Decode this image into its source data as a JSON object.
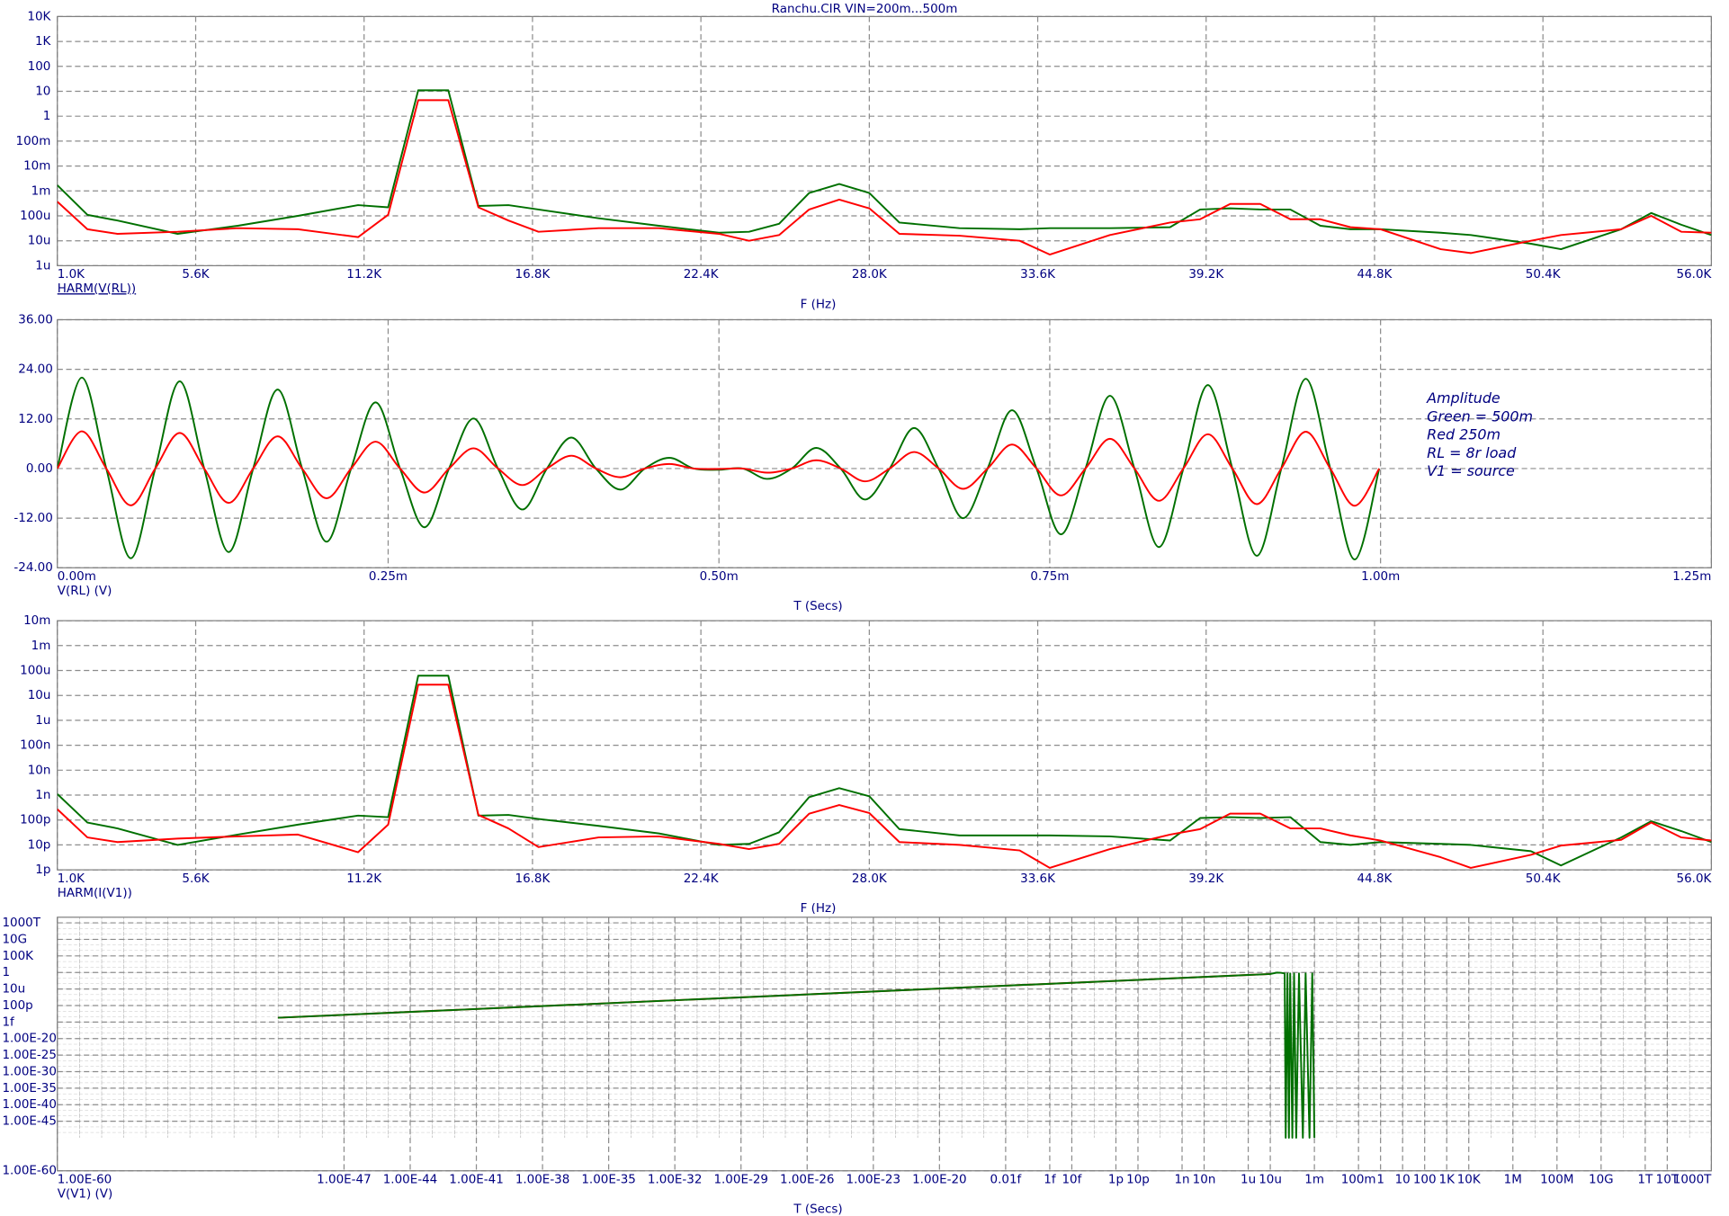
{
  "chart_data": [
    {
      "type": "line",
      "title": "Ranchu.CIR VIN=200m...500m",
      "trace": "HARM(V(RL))",
      "trace_color": "#0000ff",
      "x_label": "F (Hz)",
      "x_scale": "linear",
      "y_scale": "log",
      "grid": true,
      "smooth": false,
      "xlim": [
        1000,
        56000
      ],
      "xticks": [
        {
          "value": 1000,
          "label": "1.0K"
        },
        {
          "value": 5600,
          "label": "5.6K"
        },
        {
          "value": 11200,
          "label": "11.2K"
        },
        {
          "value": 16800,
          "label": "16.8K"
        },
        {
          "value": 22400,
          "label": "22.4K"
        },
        {
          "value": 28000,
          "label": "28.0K"
        },
        {
          "value": 33600,
          "label": "33.6K"
        },
        {
          "value": 39200,
          "label": "39.2K"
        },
        {
          "value": 44800,
          "label": "44.8K"
        },
        {
          "value": 50400,
          "label": "50.4K"
        },
        {
          "value": 56000,
          "label": "56.0K"
        }
      ],
      "ylim": [
        1e-06,
        10000
      ],
      "yticks": [
        {
          "value": 1e-06,
          "label": "1u"
        },
        {
          "value": 1e-05,
          "label": "10u"
        },
        {
          "value": 0.0001,
          "label": "100u"
        },
        {
          "value": 0.001,
          "label": "1m"
        },
        {
          "value": 0.01,
          "label": "10m"
        },
        {
          "value": 0.1,
          "label": "100m"
        },
        1,
        10,
        100,
        {
          "value": 1000,
          "label": "1K"
        },
        {
          "value": 10000,
          "label": "10K"
        }
      ],
      "x": [
        1000,
        2000,
        3000,
        5000,
        7000,
        9000,
        11000,
        12000,
        13000,
        14000,
        15000,
        16000,
        17000,
        19000,
        21000,
        23000,
        24000,
        25000,
        26000,
        27000,
        28000,
        29000,
        31000,
        33000,
        34000,
        36000,
        38000,
        39000,
        40000,
        41000,
        42000,
        43000,
        44000,
        45000,
        47000,
        48000,
        50000,
        51000,
        53000,
        54000,
        55000,
        56000
      ],
      "series": [
        {
          "color": "#007000",
          "values": [
            0.0017,
            0.00011,
            6.5e-05,
            1.9e-05,
            4e-05,
            0.0001,
            0.00027,
            0.00022,
            11,
            11,
            0.00025,
            0.00027,
            0.00018,
            8e-05,
            4e-05,
            2.1e-05,
            2.3e-05,
            4.8e-05,
            0.00083,
            0.0019,
            0.00083,
            5.4e-05,
            3.2e-05,
            2.9e-05,
            3.2e-05,
            3.2e-05,
            3.5e-05,
            0.00018,
            0.0002,
            0.00018,
            0.00018,
            4e-05,
            2.9e-05,
            2.9e-05,
            2.1e-05,
            1.7e-05,
            7.6e-06,
            4.6e-06,
            2.9e-05,
            0.00013,
            4.4e-05,
            1.7e-05
          ]
        },
        {
          "color": "#ff0000",
          "values": [
            0.00037,
            2.9e-05,
            1.9e-05,
            2.3e-05,
            3.2e-05,
            2.9e-05,
            1.4e-05,
            0.00011,
            4.4,
            4.4,
            0.00022,
            6.5e-05,
            2.3e-05,
            3.2e-05,
            3.2e-05,
            1.9e-05,
            1e-05,
            1.7e-05,
            0.00018,
            0.00045,
            0.0002,
            1.9e-05,
            1.6e-05,
            1e-05,
            2.8e-06,
            1.7e-05,
            5.4e-05,
            7.3e-05,
            0.0003,
            0.0003,
            7.3e-05,
            7.3e-05,
            3.5e-05,
            2.9e-05,
            4.6e-06,
            3.2e-06,
            1e-05,
            1.7e-05,
            2.9e-05,
            0.0001,
            2.3e-05,
            2.1e-05
          ]
        }
      ]
    },
    {
      "type": "line",
      "trace": "V(RL) (V)",
      "trace_color": "#ff0000",
      "x_label": "T (Secs)",
      "x_scale": "linear",
      "y_scale": "linear",
      "grid": true,
      "smooth": true,
      "xlim": [
        0,
        0.00125
      ],
      "xticks": [
        {
          "value": 0,
          "label": "0.00m"
        },
        {
          "value": 0.00025,
          "label": "0.25m"
        },
        {
          "value": 0.0005,
          "label": "0.50m"
        },
        {
          "value": 0.00075,
          "label": "0.75m"
        },
        {
          "value": 0.001,
          "label": "1.00m"
        },
        {
          "value": 0.00125,
          "label": "1.25m"
        }
      ],
      "ylim": [
        -24,
        36
      ],
      "yticks": [
        {
          "value": -24,
          "label": "-24.00"
        },
        {
          "value": -12,
          "label": "-12.00"
        },
        {
          "value": 0,
          "label": "0.00"
        },
        {
          "value": 12,
          "label": "12.00"
        },
        {
          "value": 24,
          "label": "24.00"
        },
        {
          "value": 36,
          "label": "36.00"
        }
      ],
      "annotations": [
        "Amplitude",
        "Green = 500m",
        "Red 250m",
        "RL = 8r load",
        "V1 = source"
      ],
      "annotation_color": "#ff0000",
      "x": [
        0,
        1.85e-05,
        3.7e-05,
        5.55e-05,
        7.4e-05,
        9.25e-05,
        0.000111,
        0.0001295,
        0.000148,
        0.0001665,
        0.000185,
        0.0002035,
        0.000222,
        0.0002405,
        0.000259,
        0.0002775,
        0.000296,
        0.0003145,
        0.000333,
        0.0003515,
        0.00037,
        0.0003885,
        0.000407,
        0.0004255,
        0.000444,
        0.0004625,
        0.000481,
        0.0004995,
        0.000518,
        0.0005365,
        0.000555,
        0.0005735,
        0.000592,
        0.0006105,
        0.000629,
        0.0006475,
        0.000666,
        0.0006845,
        0.000703,
        0.0007215,
        0.00074,
        0.0007585,
        0.000777,
        0.0007955,
        0.000814,
        0.0008325,
        0.000851,
        0.0008695,
        0.000888,
        0.0009065,
        0.000925,
        0.0009435,
        0.000962,
        0.0009805,
        0.000999
      ],
      "series": [
        {
          "color": "#007000",
          "values": [
            0,
            22.0,
            0,
            -21.7,
            0,
            21.1,
            0,
            -20.2,
            0,
            19.1,
            0,
            -17.7,
            0,
            16.0,
            0,
            -14.2,
            0,
            12.1,
            0,
            -9.9,
            0,
            7.5,
            0,
            -5.1,
            0,
            2.6,
            0,
            -0.3,
            0,
            -2.5,
            0,
            5.0,
            0,
            -7.5,
            0,
            9.8,
            0,
            -12.0,
            0,
            14.1,
            0,
            -15.9,
            0,
            17.6,
            0,
            -19.0,
            0,
            20.2,
            0,
            -21.1,
            0,
            21.7,
            0,
            -22.0,
            0
          ]
        },
        {
          "color": "#ff0000",
          "values": [
            0,
            9.0,
            0,
            -8.9,
            0,
            8.6,
            0,
            -8.3,
            0,
            7.8,
            0,
            -7.2,
            0,
            6.5,
            0,
            -5.8,
            0,
            4.9,
            0,
            -4.0,
            0,
            3.1,
            0,
            -2.1,
            0,
            1.1,
            0,
            -0.1,
            0,
            -1.0,
            0,
            2.0,
            0,
            -3.1,
            0,
            4.0,
            0,
            -4.9,
            0,
            5.8,
            0,
            -6.5,
            0,
            7.2,
            0,
            -7.8,
            0,
            8.3,
            0,
            -8.6,
            0,
            8.9,
            0,
            -9.0,
            0
          ]
        }
      ]
    },
    {
      "type": "line",
      "trace": "HARM(I(V1))",
      "trace_color": "#007000",
      "x_label": "F (Hz)",
      "x_scale": "linear",
      "y_scale": "log",
      "grid": true,
      "smooth": false,
      "xlim": [
        1000,
        56000
      ],
      "xticks": [
        {
          "value": 1000,
          "label": "1.0K"
        },
        {
          "value": 5600,
          "label": "5.6K"
        },
        {
          "value": 11200,
          "label": "11.2K"
        },
        {
          "value": 16800,
          "label": "16.8K"
        },
        {
          "value": 22400,
          "label": "22.4K"
        },
        {
          "value": 28000,
          "label": "28.0K"
        },
        {
          "value": 33600,
          "label": "33.6K"
        },
        {
          "value": 39200,
          "label": "39.2K"
        },
        {
          "value": 44800,
          "label": "44.8K"
        },
        {
          "value": 50400,
          "label": "50.4K"
        },
        {
          "value": 56000,
          "label": "56.0K"
        }
      ],
      "ylim": [
        1e-12,
        0.01
      ],
      "yticks": [
        {
          "value": 1e-12,
          "label": "1p"
        },
        {
          "value": 1e-11,
          "label": "10p"
        },
        {
          "value": 1e-10,
          "label": "100p"
        },
        {
          "value": 1e-09,
          "label": "1n"
        },
        {
          "value": 1e-08,
          "label": "10n"
        },
        {
          "value": 1e-07,
          "label": "100n"
        },
        {
          "value": 1e-06,
          "label": "1u"
        },
        {
          "value": 1e-05,
          "label": "10u"
        },
        {
          "value": 0.0001,
          "label": "100u"
        },
        {
          "value": 0.001,
          "label": "1m"
        },
        {
          "value": 0.01,
          "label": "10m"
        }
      ],
      "x": [
        1000,
        2000,
        3000,
        5000,
        7000,
        9000,
        11000,
        12000,
        13000,
        14000,
        15000,
        16000,
        17000,
        19000,
        21000,
        23000,
        24000,
        25000,
        26000,
        27000,
        28000,
        29000,
        31000,
        33000,
        34000,
        36000,
        38000,
        39000,
        40000,
        41000,
        42000,
        43000,
        44000,
        45000,
        47000,
        48000,
        50000,
        51000,
        53000,
        54000,
        55000,
        56000
      ],
      "series": [
        {
          "color": "#007000",
          "values": [
            1.1e-09,
            7.9e-11,
            4.6e-11,
            1e-11,
            2.6e-11,
            6.5e-11,
            1.5e-10,
            1.3e-10,
            6.2e-05,
            6.2e-05,
            1.5e-10,
            1.6e-10,
            1.1e-10,
            5.8e-11,
            2.9e-11,
            1e-11,
            1.1e-11,
            3.2e-11,
            8.3e-10,
            1.9e-09,
            9e-10,
            4.3e-11,
            2.4e-11,
            2.4e-11,
            2.4e-11,
            2.2e-11,
            1.5e-11,
            1.2e-10,
            1.3e-10,
            1.2e-10,
            1.3e-10,
            1.3e-11,
            1e-11,
            1.3e-11,
            1.1e-11,
            1e-11,
            5.6e-12,
            1.5e-12,
            2e-11,
            8.9e-11,
            3.6e-11,
            1.3e-11
          ]
        },
        {
          "color": "#ff0000",
          "values": [
            2.7e-10,
            2e-11,
            1.3e-11,
            1.8e-11,
            2.2e-11,
            2.6e-11,
            5.1e-12,
            6.5e-11,
            2.7e-05,
            2.7e-05,
            1.6e-10,
            4.6e-11,
            8.2e-12,
            2e-11,
            2.2e-11,
            1.1e-11,
            6.8e-12,
            1.1e-11,
            1.8e-10,
            4e-10,
            1.9e-10,
            1.3e-11,
            1e-11,
            6e-12,
            1.2e-12,
            6.8e-12,
            2.6e-11,
            4.3e-11,
            1.8e-10,
            1.8e-10,
            4.6e-11,
            4.6e-11,
            2.4e-11,
            1.5e-11,
            3.2e-12,
            1.2e-12,
            4e-12,
            9.4e-12,
            1.6e-11,
            7.9e-11,
            2e-11,
            1.5e-11
          ]
        }
      ]
    },
    {
      "type": "line",
      "trace": "V(V1) (V)",
      "trace_color": "#ff00ff",
      "x_label": "T (Secs)",
      "x_scale": "log",
      "y_scale": "log",
      "grid": true,
      "smooth": false,
      "xlim": [
        1e-60,
        1000000000000000.0
      ],
      "xticks": [
        {
          "value": 1e-60,
          "label": "1.00E-60"
        },
        {
          "value": 1e-47,
          "label": "1.00E-47"
        },
        {
          "value": 1e-44,
          "label": "1.00E-44"
        },
        {
          "value": 1e-41,
          "label": "1.00E-41"
        },
        {
          "value": 1e-38,
          "label": "1.00E-38"
        },
        {
          "value": 1e-35,
          "label": "1.00E-35"
        },
        {
          "value": 1e-32,
          "label": "1.00E-32"
        },
        {
          "value": 1e-29,
          "label": "1.00E-29"
        },
        {
          "value": 1e-26,
          "label": "1.00E-26"
        },
        {
          "value": 1e-23,
          "label": "1.00E-23"
        },
        {
          "value": 1e-20,
          "label": "1.00E-20"
        },
        {
          "value": 1e-17,
          "label": "0.01f"
        },
        {
          "value": 1e-15,
          "label": "1f"
        },
        {
          "value": 1e-14,
          "label": "10f"
        },
        {
          "value": 1e-12,
          "label": "1p"
        },
        {
          "value": 1e-11,
          "label": "10p"
        },
        {
          "value": 1e-09,
          "label": "1n"
        },
        {
          "value": 1e-08,
          "label": "10n"
        },
        {
          "value": 1e-06,
          "label": "1u"
        },
        {
          "value": 1e-05,
          "label": "10u"
        },
        {
          "value": 0.001,
          "label": "1m"
        },
        {
          "value": 0.1,
          "label": "100m"
        },
        1,
        10,
        100,
        {
          "value": 1000,
          "label": "1K"
        },
        {
          "value": 10000,
          "label": "10K"
        },
        {
          "value": 1000000,
          "label": "1M"
        },
        {
          "value": 100000000,
          "label": "100M"
        },
        {
          "value": 10000000000.0,
          "label": "10G"
        },
        {
          "value": 1000000000000.0,
          "label": "1T"
        },
        {
          "value": 10000000000000.0,
          "label": "10T"
        },
        {
          "value": 1000000000000000.0,
          "label": "1000T"
        }
      ],
      "ylim": [
        1e-60,
        5e+16
      ],
      "yticks": [
        {
          "value": 1000000000000000.0,
          "label": "1000T"
        },
        {
          "value": 10000000000.0,
          "label": "10G"
        },
        {
          "value": 100000,
          "label": "100K"
        },
        1,
        {
          "value": 1e-05,
          "label": "10u"
        },
        {
          "value": 1e-10,
          "label": "100p"
        },
        {
          "value": 1e-15,
          "label": "1f"
        },
        {
          "value": 1e-20,
          "label": "1.00E-20"
        },
        {
          "value": 1e-25,
          "label": "1.00E-25"
        },
        {
          "value": 1e-30,
          "label": "1.00E-30"
        },
        {
          "value": 1e-35,
          "label": "1.00E-35"
        },
        {
          "value": 1e-40,
          "label": "1.00E-40"
        },
        {
          "value": 1e-45,
          "label": "1.00E-45"
        },
        {
          "value": 1e-60,
          "label": "1.00E-60"
        }
      ],
      "series": [
        {
          "color": "#ff0000",
          "x": [
            1e-50,
            1e-40,
            1e-30,
            1e-20,
            1e-10,
            1e-06,
            1e-05
          ],
          "values": [
            2e-14,
            1.7e-11,
            1.5e-08,
            1.3e-05,
            0.011,
            0.17,
            0.34
          ]
        },
        {
          "color": "#007000",
          "x": [
            1e-50,
            1e-40,
            1e-30,
            1e-20,
            1e-10,
            1e-06,
            1e-05,
            2e-05,
            3e-05,
            4.5e-05,
            5e-05,
            6e-05,
            7e-05,
            8e-05,
            0.0001,
            0.00012,
            0.00015,
            0.0002,
            0.0003,
            0.0004,
            0.0006,
            0.0008,
            0.001
          ],
          "values": [
            2e-14,
            1.7e-11,
            1.5e-08,
            1.3e-05,
            0.011,
            0.17,
            0.34,
            0.9,
            0.8,
            0.5,
            1e-50,
            0.5,
            1e-50,
            0.5,
            1e-50,
            0.5,
            1e-50,
            0.5,
            1e-50,
            0.5,
            1e-50,
            0.5,
            1e-50
          ]
        }
      ]
    }
  ]
}
